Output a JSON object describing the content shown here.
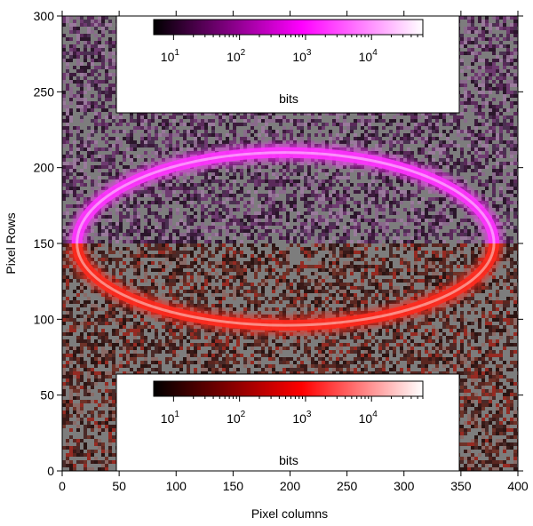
{
  "chart_data": {
    "type": "heatmap",
    "xlabel": "Pixel columns",
    "ylabel": "Pixel Rows",
    "xlim": [
      0,
      400
    ],
    "ylim": [
      0,
      300
    ],
    "x_ticks": [
      "0",
      "50",
      "100",
      "150",
      "200",
      "250",
      "300",
      "350",
      "400"
    ],
    "y_ticks": [
      "0",
      "50",
      "100",
      "150",
      "200",
      "250",
      "300"
    ],
    "grid": false,
    "panels": [
      {
        "name": "upper",
        "rows": [
          150,
          300
        ],
        "colormap": [
          "#000000",
          "#ff00ff",
          "#ffffff"
        ],
        "ring": {
          "cx": 196,
          "cy": 150,
          "rx": 183,
          "ry": 60
        }
      },
      {
        "name": "lower",
        "rows": [
          0,
          150
        ],
        "colormap": [
          "#000000",
          "#ff0000",
          "#ffffff"
        ],
        "ring": {
          "cx": 196,
          "cy": 150,
          "rx": 183,
          "ry": 54
        }
      }
    ],
    "colorbars": [
      {
        "position": "top",
        "colormap": [
          "#000000",
          "#ff00ff",
          "#ffffff"
        ],
        "scale": "log",
        "ticks": [
          {
            "base": "10",
            "exp": "1",
            "value": 10
          },
          {
            "base": "10",
            "exp": "2",
            "value": 100
          },
          {
            "base": "10",
            "exp": "3",
            "value": 1000
          },
          {
            "base": "10",
            "exp": "4",
            "value": 10000
          }
        ],
        "range": [
          5,
          60000
        ],
        "label": "bits"
      },
      {
        "position": "bottom",
        "colormap": [
          "#000000",
          "#ff0000",
          "#ffffff"
        ],
        "scale": "log",
        "ticks": [
          {
            "base": "10",
            "exp": "1",
            "value": 10
          },
          {
            "base": "10",
            "exp": "2",
            "value": 100
          },
          {
            "base": "10",
            "exp": "3",
            "value": 1000
          },
          {
            "base": "10",
            "exp": "4",
            "value": 10000
          }
        ],
        "range": [
          5,
          60000
        ],
        "label": "bits"
      }
    ]
  }
}
